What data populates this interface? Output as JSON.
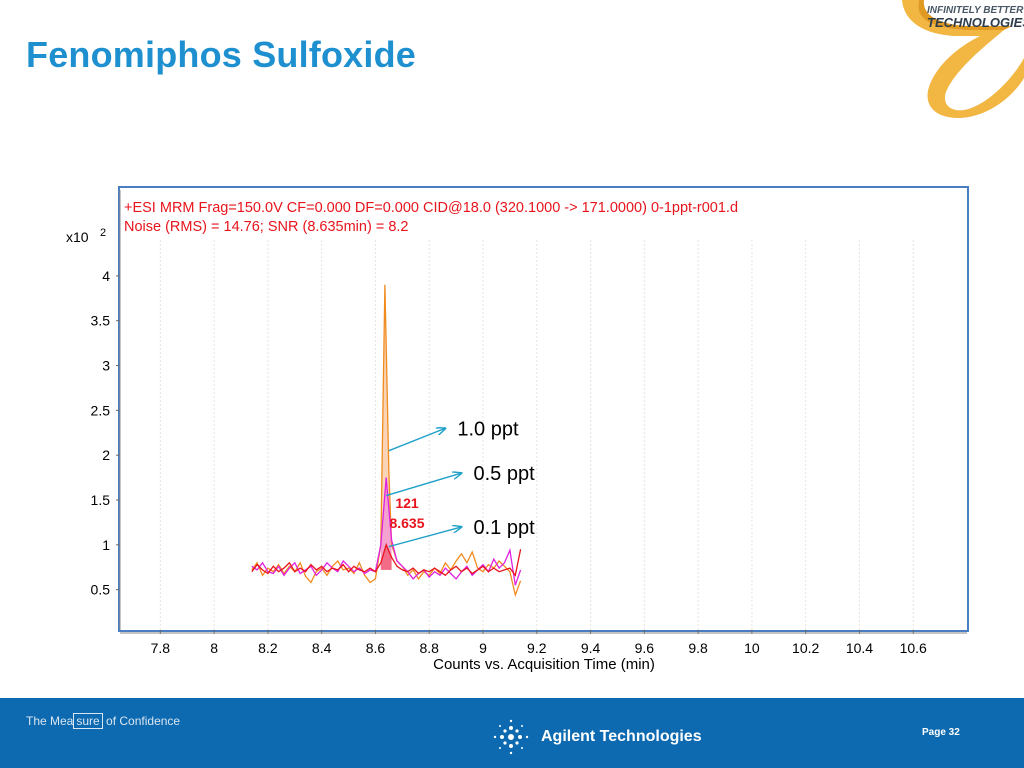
{
  "slide": {
    "title": "Fenomiphos Sulfoxide",
    "logo_line1": "INFINITELY BETTER",
    "logo_line2": "TECHNOLOGIES",
    "footer_tagline_pre": "The Mea",
    "footer_tagline_box": "sure",
    "footer_tagline_post": " of Confidence",
    "footer_brand": "Agilent Technologies",
    "page_label": "Page 32"
  },
  "colors": {
    "title": "#1e90d0",
    "header_text": "#e8141c",
    "frame": "#4a7ec2",
    "series_1ppt": "#f08c1e",
    "series_05ppt": "#e020e0",
    "series_01ppt": "#e8141c",
    "arrow": "#1ea0c8",
    "footer": "#0e6ab0"
  },
  "chart_data": {
    "type": "line",
    "header_line1": "+ESI MRM Frag=150.0V CF=0.000 DF=0.000 CID@18.0 (320.1000 -> 171.0000) 0-1ppt-r001.d",
    "header_line2": "Noise (RMS) = 14.76; SNR (8.635min) = 8.2",
    "y_multiplier": "x10",
    "y_exponent": "2",
    "xlabel": "Counts vs. Acquisition Time (min)",
    "xlim": [
      7.65,
      10.8
    ],
    "ylim": [
      0.05,
      4.4
    ],
    "x_ticks": [
      "7.8",
      "8",
      "8.2",
      "8.4",
      "8.6",
      "8.8",
      "9",
      "9.2",
      "9.4",
      "9.6",
      "9.8",
      "10",
      "10.2",
      "10.4",
      "10.6"
    ],
    "y_ticks": [
      "0.5",
      "1",
      "1.5",
      "2",
      "2.5",
      "3",
      "3.5",
      "4"
    ],
    "peak_label_area": "121",
    "peak_label_rt": "8.635",
    "series": [
      {
        "name": "1.0 ppt",
        "color": "#f08c1e",
        "fill": "#f6b888",
        "points": [
          [
            8.14,
            0.72
          ],
          [
            8.16,
            0.8
          ],
          [
            8.18,
            0.66
          ],
          [
            8.2,
            0.74
          ],
          [
            8.22,
            0.7
          ],
          [
            8.24,
            0.78
          ],
          [
            8.26,
            0.68
          ],
          [
            8.28,
            0.76
          ],
          [
            8.3,
            0.7
          ],
          [
            8.32,
            0.8
          ],
          [
            8.34,
            0.65
          ],
          [
            8.36,
            0.58
          ],
          [
            8.38,
            0.7
          ],
          [
            8.4,
            0.74
          ],
          [
            8.42,
            0.66
          ],
          [
            8.44,
            0.76
          ],
          [
            8.46,
            0.82
          ],
          [
            8.48,
            0.72
          ],
          [
            8.5,
            0.74
          ],
          [
            8.52,
            0.68
          ],
          [
            8.54,
            0.8
          ],
          [
            8.56,
            0.66
          ],
          [
            8.58,
            0.58
          ],
          [
            8.6,
            0.62
          ],
          [
            8.62,
            1.0
          ],
          [
            8.635,
            3.9
          ],
          [
            8.65,
            1.8
          ],
          [
            8.66,
            1.0
          ],
          [
            8.68,
            0.82
          ],
          [
            8.7,
            0.76
          ],
          [
            8.72,
            0.66
          ],
          [
            8.74,
            0.72
          ],
          [
            8.76,
            0.62
          ],
          [
            8.78,
            0.7
          ],
          [
            8.8,
            0.66
          ],
          [
            8.82,
            0.74
          ],
          [
            8.84,
            0.68
          ],
          [
            8.86,
            0.8
          ],
          [
            8.88,
            0.72
          ],
          [
            8.9,
            0.82
          ],
          [
            8.92,
            0.9
          ],
          [
            8.94,
            0.8
          ],
          [
            8.96,
            0.92
          ],
          [
            8.98,
            0.74
          ],
          [
            9.0,
            0.7
          ],
          [
            9.02,
            0.78
          ],
          [
            9.04,
            0.74
          ],
          [
            9.06,
            0.82
          ],
          [
            9.08,
            0.76
          ],
          [
            9.1,
            0.7
          ],
          [
            9.12,
            0.44
          ],
          [
            9.14,
            0.6
          ]
        ]
      },
      {
        "name": "0.5 ppt",
        "color": "#e020e0",
        "fill": "#f080e0",
        "points": [
          [
            8.14,
            0.76
          ],
          [
            8.16,
            0.72
          ],
          [
            8.18,
            0.8
          ],
          [
            8.2,
            0.7
          ],
          [
            8.22,
            0.68
          ],
          [
            8.24,
            0.76
          ],
          [
            8.26,
            0.66
          ],
          [
            8.28,
            0.74
          ],
          [
            8.3,
            0.8
          ],
          [
            8.32,
            0.68
          ],
          [
            8.34,
            0.72
          ],
          [
            8.36,
            0.76
          ],
          [
            8.38,
            0.66
          ],
          [
            8.4,
            0.72
          ],
          [
            8.42,
            0.8
          ],
          [
            8.44,
            0.74
          ],
          [
            8.46,
            0.7
          ],
          [
            8.48,
            0.82
          ],
          [
            8.5,
            0.76
          ],
          [
            8.52,
            0.7
          ],
          [
            8.54,
            0.74
          ],
          [
            8.56,
            0.68
          ],
          [
            8.58,
            0.72
          ],
          [
            8.6,
            0.7
          ],
          [
            8.62,
            1.0
          ],
          [
            8.64,
            1.75
          ],
          [
            8.66,
            1.05
          ],
          [
            8.68,
            0.82
          ],
          [
            8.7,
            0.76
          ],
          [
            8.72,
            0.7
          ],
          [
            8.74,
            0.62
          ],
          [
            8.76,
            0.68
          ],
          [
            8.78,
            0.72
          ],
          [
            8.8,
            0.64
          ],
          [
            8.82,
            0.7
          ],
          [
            8.84,
            0.66
          ],
          [
            8.86,
            0.74
          ],
          [
            8.88,
            0.68
          ],
          [
            8.9,
            0.62
          ],
          [
            8.92,
            0.7
          ],
          [
            8.94,
            0.76
          ],
          [
            8.96,
            0.66
          ],
          [
            8.98,
            0.72
          ],
          [
            9.0,
            0.78
          ],
          [
            9.02,
            0.7
          ],
          [
            9.04,
            0.84
          ],
          [
            9.06,
            0.74
          ],
          [
            9.08,
            0.8
          ],
          [
            9.1,
            0.94
          ],
          [
            9.12,
            0.55
          ],
          [
            9.14,
            0.72
          ]
        ]
      },
      {
        "name": "0.1 ppt",
        "color": "#e8141c",
        "fill": "#f04858",
        "points": [
          [
            8.14,
            0.7
          ],
          [
            8.16,
            0.78
          ],
          [
            8.18,
            0.72
          ],
          [
            8.2,
            0.68
          ],
          [
            8.22,
            0.76
          ],
          [
            8.24,
            0.7
          ],
          [
            8.26,
            0.74
          ],
          [
            8.28,
            0.8
          ],
          [
            8.3,
            0.7
          ],
          [
            8.32,
            0.74
          ],
          [
            8.34,
            0.7
          ],
          [
            8.36,
            0.78
          ],
          [
            8.38,
            0.72
          ],
          [
            8.4,
            0.76
          ],
          [
            8.42,
            0.7
          ],
          [
            8.44,
            0.74
          ],
          [
            8.46,
            0.72
          ],
          [
            8.48,
            0.78
          ],
          [
            8.5,
            0.7
          ],
          [
            8.52,
            0.76
          ],
          [
            8.54,
            0.72
          ],
          [
            8.56,
            0.7
          ],
          [
            8.58,
            0.74
          ],
          [
            8.6,
            0.7
          ],
          [
            8.62,
            0.8
          ],
          [
            8.64,
            1.0
          ],
          [
            8.66,
            0.86
          ],
          [
            8.68,
            0.76
          ],
          [
            8.7,
            0.72
          ],
          [
            8.72,
            0.7
          ],
          [
            8.74,
            0.74
          ],
          [
            8.76,
            0.68
          ],
          [
            8.78,
            0.72
          ],
          [
            8.8,
            0.7
          ],
          [
            8.82,
            0.74
          ],
          [
            8.84,
            0.7
          ],
          [
            8.86,
            0.66
          ],
          [
            8.88,
            0.72
          ],
          [
            8.9,
            0.76
          ],
          [
            8.92,
            0.7
          ],
          [
            8.94,
            0.74
          ],
          [
            8.96,
            0.68
          ],
          [
            8.98,
            0.72
          ],
          [
            9.0,
            0.76
          ],
          [
            9.02,
            0.7
          ],
          [
            9.04,
            0.74
          ],
          [
            9.06,
            0.7
          ],
          [
            9.08,
            0.72
          ],
          [
            9.1,
            0.74
          ],
          [
            9.12,
            0.66
          ],
          [
            9.14,
            0.95
          ]
        ]
      }
    ],
    "annotations": [
      {
        "text": "1.0 ppt",
        "series": "1.0 ppt",
        "arrow_from": [
          8.65,
          2.05
        ],
        "arrow_to": [
          8.86,
          2.3
        ]
      },
      {
        "text": "0.5 ppt",
        "series": "0.5 ppt",
        "arrow_from": [
          8.64,
          1.55
        ],
        "arrow_to": [
          8.92,
          1.8
        ]
      },
      {
        "text": "0.1 ppt",
        "series": "0.1 ppt",
        "arrow_from": [
          8.65,
          0.98
        ],
        "arrow_to": [
          8.92,
          1.2
        ]
      }
    ]
  }
}
